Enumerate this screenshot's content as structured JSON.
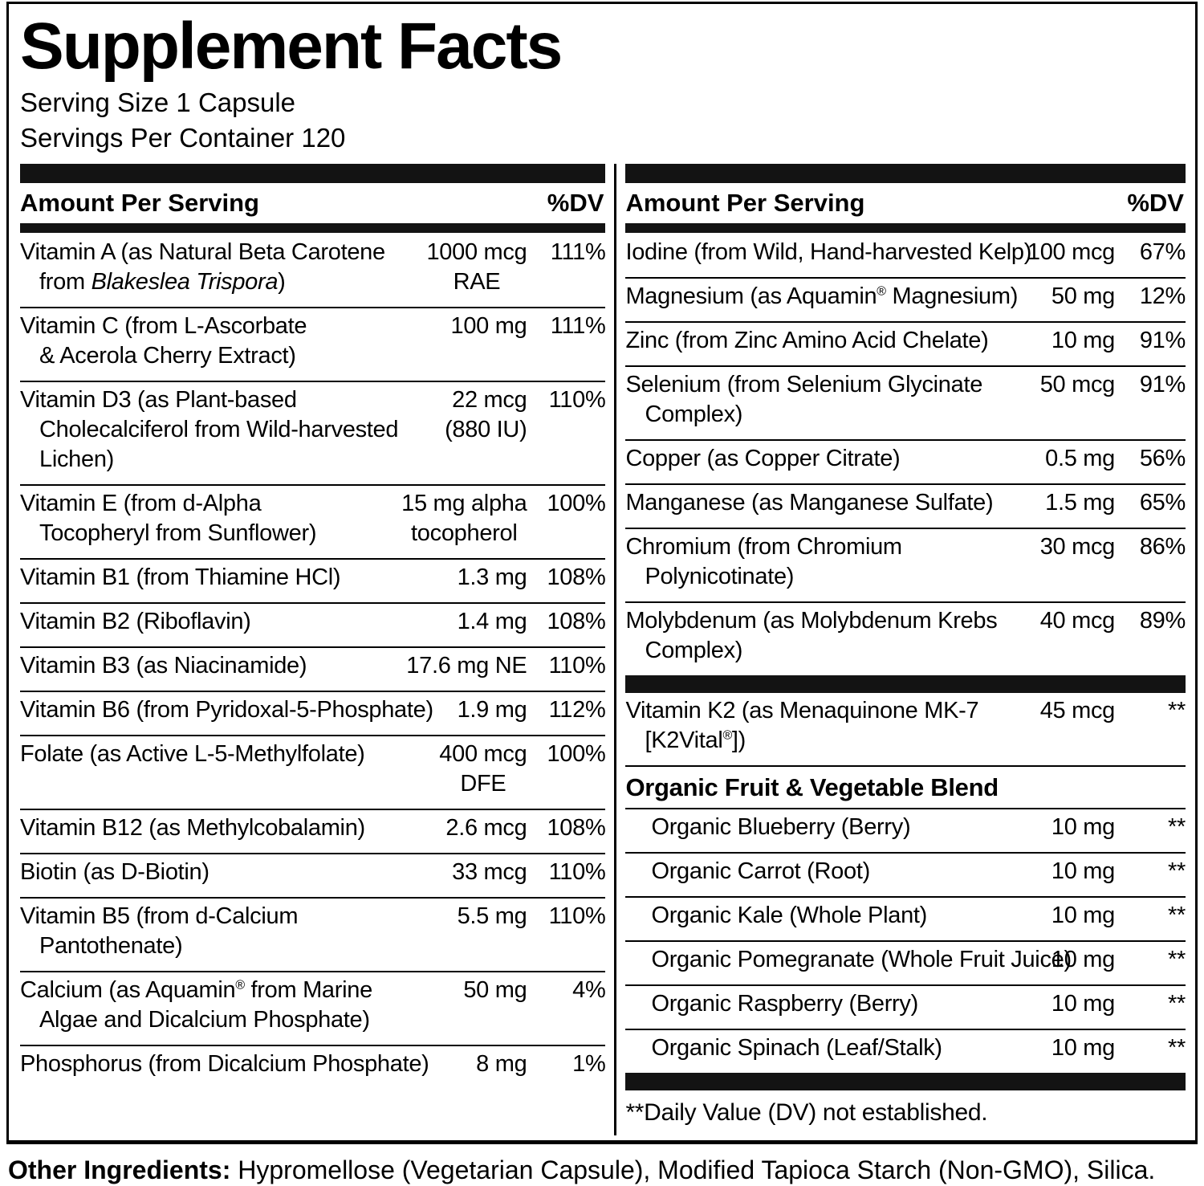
{
  "colors": {
    "text": "#000000",
    "background": "#ffffff",
    "bar": "#131313"
  },
  "title": "Supplement Facts",
  "serving_info": {
    "serving_size": "Serving Size 1 Capsule",
    "servings_per_container": "Servings Per Container 120"
  },
  "column_header": {
    "amount_label": "Amount Per Serving",
    "dv_label": "%DV"
  },
  "left_column": {
    "rows": [
      {
        "type": "item",
        "name_lines": [
          "Vitamin A (as Natural Beta Carotene",
          "from *Blakeslea Trispora*)"
        ],
        "amount_lines": [
          "1000 mcg",
          "RAE"
        ],
        "dv": "111%"
      },
      {
        "type": "item",
        "name_lines": [
          "Vitamin C (from L-Ascorbate",
          "& Acerola Cherry Extract)"
        ],
        "amount_lines": [
          "100 mg"
        ],
        "dv": "111%"
      },
      {
        "type": "item",
        "name_lines": [
          "Vitamin D3 (as Plant-based",
          "Cholecalciferol from Wild-harvested",
          "Lichen)"
        ],
        "amount_lines": [
          "22 mcg",
          "(880 IU)"
        ],
        "dv": "110%"
      },
      {
        "type": "item",
        "name_lines": [
          "Vitamin E (from d-Alpha",
          "Tocopheryl from Sunflower)"
        ],
        "amount_lines": [
          "15 mg alpha",
          "tocopherol"
        ],
        "dv": "100%"
      },
      {
        "type": "item",
        "name_lines": [
          "Vitamin B1 (from Thiamine HCl)"
        ],
        "amount_lines": [
          "1.3 mg"
        ],
        "dv": "108%"
      },
      {
        "type": "item",
        "name_lines": [
          "Vitamin B2 (Riboflavin)"
        ],
        "amount_lines": [
          "1.4 mg"
        ],
        "dv": "108%"
      },
      {
        "type": "item",
        "name_lines": [
          "Vitamin B3 (as Niacinamide)"
        ],
        "amount_lines": [
          "17.6 mg NE"
        ],
        "dv": "110%"
      },
      {
        "type": "item",
        "name_lines": [
          "Vitamin B6 (from Pyridoxal-5-Phosphate)"
        ],
        "amount_lines": [
          "1.9 mg"
        ],
        "dv": "112%"
      },
      {
        "type": "item",
        "name_lines": [
          "Folate (as Active L-5-Methylfolate)"
        ],
        "amount_lines": [
          "400 mcg",
          "DFE"
        ],
        "dv": "100%"
      },
      {
        "type": "item",
        "name_lines": [
          "Vitamin B12 (as Methylcobalamin)"
        ],
        "amount_lines": [
          "2.6 mcg"
        ],
        "dv": "108%"
      },
      {
        "type": "item",
        "name_lines": [
          "Biotin (as D-Biotin)"
        ],
        "amount_lines": [
          "33 mcg"
        ],
        "dv": "110%"
      },
      {
        "type": "item",
        "name_lines": [
          "Vitamin B5 (from d-Calcium",
          "Pantothenate)"
        ],
        "amount_lines": [
          "5.5 mg"
        ],
        "dv": "110%"
      },
      {
        "type": "item",
        "name_lines": [
          "Calcium (as Aquamin® from Marine",
          "Algae and Dicalcium Phosphate)"
        ],
        "amount_lines": [
          "50 mg"
        ],
        "dv": "4%"
      },
      {
        "type": "item",
        "name_lines": [
          "Phosphorus (from Dicalcium Phosphate)"
        ],
        "amount_lines": [
          "8 mg"
        ],
        "dv": "1%"
      }
    ]
  },
  "right_column": {
    "rows": [
      {
        "type": "item",
        "name_lines": [
          "Iodine (from Wild, Hand-harvested Kelp)"
        ],
        "amount_lines": [
          "100 mcg"
        ],
        "dv": "67%"
      },
      {
        "type": "item",
        "name_lines": [
          "Magnesium (as Aquamin® Magnesium)"
        ],
        "amount_lines": [
          "50 mg"
        ],
        "dv": "12%"
      },
      {
        "type": "item",
        "name_lines": [
          "Zinc (from Zinc Amino Acid Chelate)"
        ],
        "amount_lines": [
          "10 mg"
        ],
        "dv": "91%"
      },
      {
        "type": "item",
        "name_lines": [
          "Selenium (from Selenium Glycinate",
          "Complex)"
        ],
        "amount_lines": [
          "50 mcg"
        ],
        "dv": "91%"
      },
      {
        "type": "item",
        "name_lines": [
          "Copper (as Copper Citrate)"
        ],
        "amount_lines": [
          "0.5 mg"
        ],
        "dv": "56%"
      },
      {
        "type": "item",
        "name_lines": [
          "Manganese (as Manganese Sulfate)"
        ],
        "amount_lines": [
          "1.5 mg"
        ],
        "dv": "65%"
      },
      {
        "type": "item",
        "name_lines": [
          "Chromium (from Chromium",
          "Polynicotinate)"
        ],
        "amount_lines": [
          "30 mcg"
        ],
        "dv": "86%"
      },
      {
        "type": "item",
        "name_lines": [
          "Molybdenum (as Molybdenum Krebs",
          "Complex)"
        ],
        "amount_lines": [
          "40 mcg"
        ],
        "dv": "89%"
      },
      {
        "type": "bar"
      },
      {
        "type": "item",
        "name_lines": [
          "Vitamin K2 (as Menaquinone MK-7",
          "[K2Vital®])"
        ],
        "amount_lines": [
          "45 mcg"
        ],
        "dv": "**"
      },
      {
        "type": "section",
        "label": "Organic Fruit & Vegetable Blend"
      },
      {
        "type": "item",
        "indent": true,
        "name_lines": [
          "Organic Blueberry (Berry)"
        ],
        "amount_lines": [
          "10 mg"
        ],
        "dv": "**"
      },
      {
        "type": "item",
        "indent": true,
        "name_lines": [
          "Organic Carrot (Root)"
        ],
        "amount_lines": [
          "10 mg"
        ],
        "dv": "**"
      },
      {
        "type": "item",
        "indent": true,
        "name_lines": [
          "Organic Kale (Whole Plant)"
        ],
        "amount_lines": [
          "10 mg"
        ],
        "dv": "**"
      },
      {
        "type": "item",
        "indent": true,
        "name_lines": [
          "Organic Pomegranate (Whole Fruit Juice)"
        ],
        "amount_lines": [
          "10 mg"
        ],
        "dv": "**"
      },
      {
        "type": "item",
        "indent": true,
        "name_lines": [
          "Organic Raspberry (Berry)"
        ],
        "amount_lines": [
          "10 mg"
        ],
        "dv": "**"
      },
      {
        "type": "item",
        "indent": true,
        "name_lines": [
          "Organic Spinach (Leaf/Stalk)"
        ],
        "amount_lines": [
          "10 mg"
        ],
        "dv": "**"
      },
      {
        "type": "bar"
      },
      {
        "type": "note",
        "text": "**Daily Value (DV) not established."
      }
    ]
  },
  "other_ingredients": {
    "label": "Other Ingredients:",
    "text": " Hypromellose (Vegetarian Capsule), Modified Tapioca Starch (Non-GMO), Silica."
  }
}
